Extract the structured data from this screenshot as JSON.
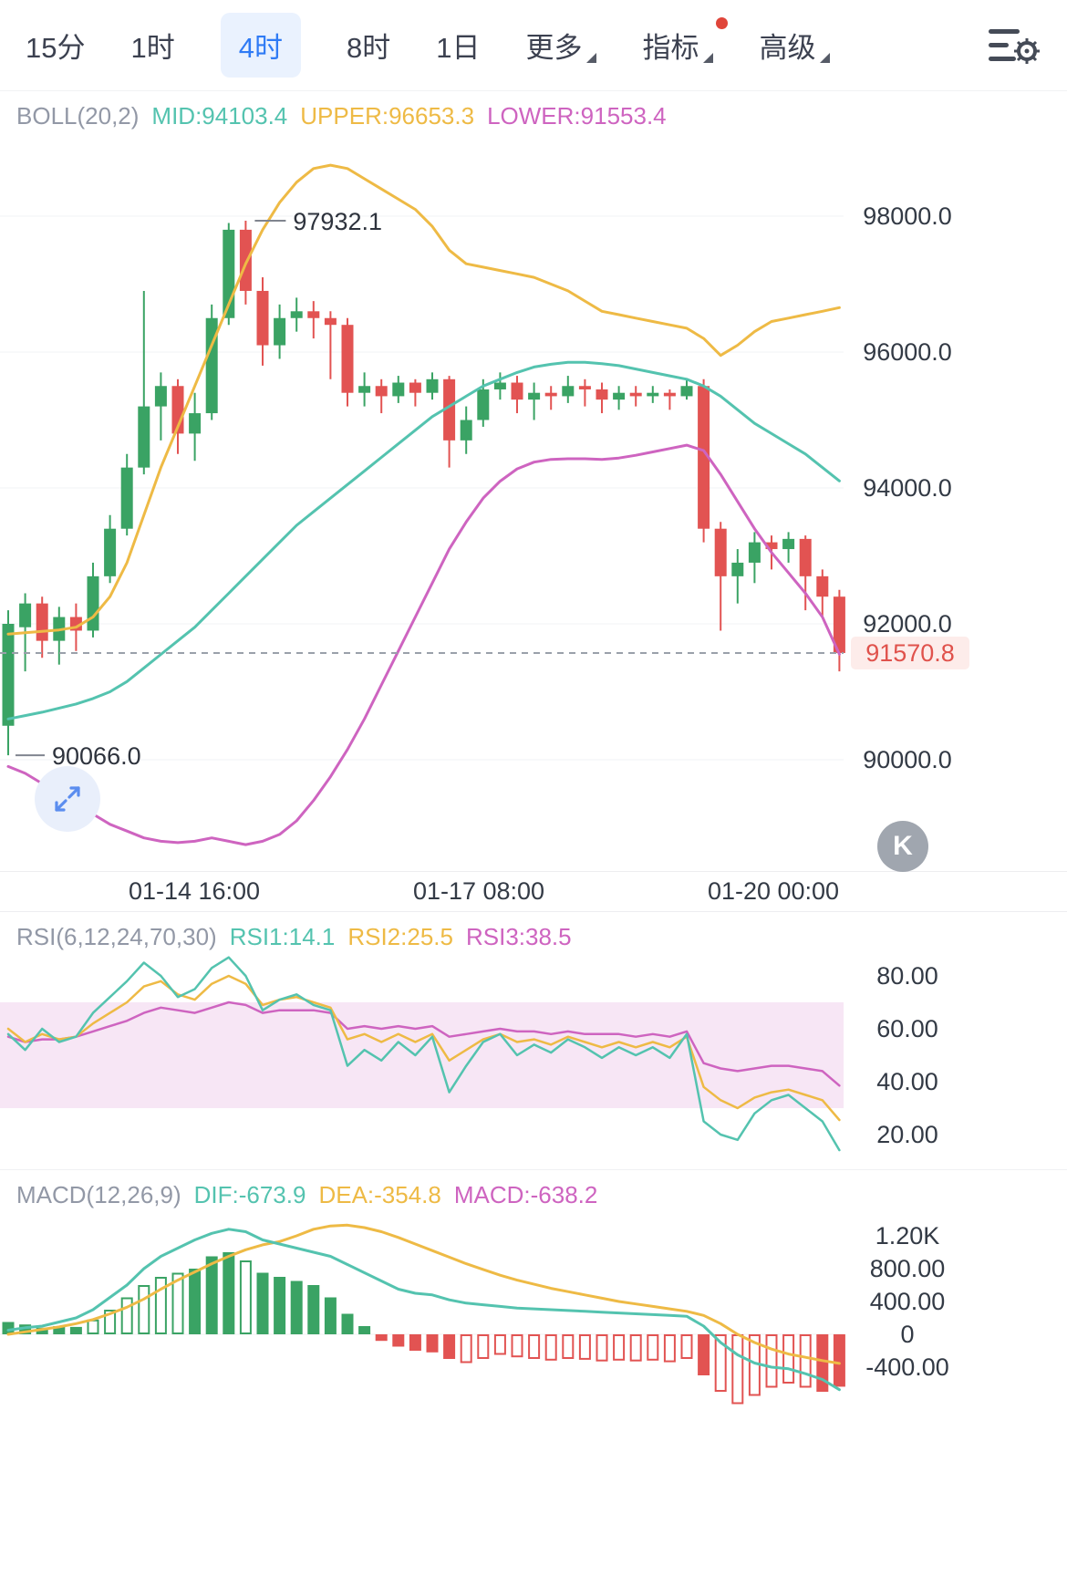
{
  "toolbar": {
    "timeframes": [
      {
        "label": "15分",
        "active": false
      },
      {
        "label": "1时",
        "active": false
      },
      {
        "label": "4时",
        "active": true
      },
      {
        "label": "8时",
        "active": false
      },
      {
        "label": "1日",
        "active": false
      }
    ],
    "menus": [
      {
        "label": "更多",
        "has_badge": false
      },
      {
        "label": "指标",
        "has_badge": true
      },
      {
        "label": "高级",
        "has_badge": false
      }
    ]
  },
  "buttons": {
    "k_label": "K"
  },
  "colors": {
    "up": "#3aa364",
    "down": "#e25352",
    "teal": "#54c3af",
    "orange": "#eeba45",
    "magenta": "#ce64c0",
    "grid": "#f2f3f5",
    "axis_text": "#333a45",
    "dashed": "#9aa0aa",
    "last_bg": "#fdecea",
    "last_text": "#e0524c",
    "band": "#f7e6f5",
    "title_gray": "#9298a6"
  },
  "chart_data": [
    {
      "type": "candlestick",
      "indicator": "BOLL(20,2)",
      "legend": [
        {
          "label": "BOLL(20,2)",
          "color": "#9298a6"
        },
        {
          "label": "MID:94103.4",
          "color": "#54c3af"
        },
        {
          "label": "UPPER:96653.3",
          "color": "#eeba45"
        },
        {
          "label": "LOWER:91553.4",
          "color": "#ce64c0"
        }
      ],
      "y_ticks": [
        {
          "label": "98000.0",
          "value": 98000
        },
        {
          "label": "96000.0",
          "value": 96000
        },
        {
          "label": "94000.0",
          "value": 94000
        },
        {
          "label": "92000.0",
          "value": 92000
        },
        {
          "label": "90000.0",
          "value": 90000
        }
      ],
      "x_ticks": [
        {
          "label": "01-14 16:00",
          "pos": 0.23
        },
        {
          "label": "01-17 08:00",
          "pos": 0.568
        },
        {
          "label": "01-20 00:00",
          "pos": 0.917
        }
      ],
      "candles": [
        [
          90500,
          92200,
          90066,
          92000
        ],
        [
          91950,
          92450,
          91300,
          92300
        ],
        [
          92300,
          92400,
          91500,
          91750
        ],
        [
          91750,
          92250,
          91400,
          92100
        ],
        [
          92100,
          92300,
          91600,
          91900
        ],
        [
          91900,
          92900,
          91800,
          92700
        ],
        [
          92700,
          93600,
          92600,
          93400
        ],
        [
          93400,
          94500,
          93300,
          94300
        ],
        [
          94300,
          96900,
          94200,
          95200
        ],
        [
          95200,
          95700,
          94700,
          95500
        ],
        [
          95500,
          95600,
          94500,
          94800
        ],
        [
          94800,
          95400,
          94400,
          95100
        ],
        [
          95100,
          96700,
          95000,
          96500
        ],
        [
          96500,
          97900,
          96400,
          97800
        ],
        [
          97800,
          97932.1,
          96700,
          96900
        ],
        [
          96900,
          97100,
          95800,
          96100
        ],
        [
          96100,
          96700,
          95900,
          96500
        ],
        [
          96500,
          96800,
          96300,
          96600
        ],
        [
          96600,
          96750,
          96200,
          96500
        ],
        [
          96500,
          96600,
          95600,
          96400
        ],
        [
          96400,
          96500,
          95200,
          95400
        ],
        [
          95400,
          95700,
          95200,
          95500
        ],
        [
          95500,
          95600,
          95100,
          95350
        ],
        [
          95350,
          95650,
          95250,
          95550
        ],
        [
          95550,
          95600,
          95200,
          95400
        ],
        [
          95400,
          95700,
          95300,
          95600
        ],
        [
          95600,
          95650,
          94300,
          94700
        ],
        [
          94700,
          95200,
          94500,
          95000
        ],
        [
          95000,
          95600,
          94900,
          95450
        ],
        [
          95450,
          95700,
          95300,
          95550
        ],
        [
          95550,
          95650,
          95100,
          95300
        ],
        [
          95300,
          95550,
          95000,
          95400
        ],
        [
          95400,
          95500,
          95150,
          95350
        ],
        [
          95350,
          95650,
          95250,
          95500
        ],
        [
          95500,
          95600,
          95200,
          95450
        ],
        [
          95450,
          95550,
          95100,
          95300
        ],
        [
          95300,
          95500,
          95150,
          95400
        ],
        [
          95400,
          95500,
          95200,
          95350
        ],
        [
          95350,
          95500,
          95250,
          95400
        ],
        [
          95400,
          95450,
          95150,
          95350
        ],
        [
          95350,
          95600,
          95300,
          95500
        ],
        [
          95500,
          95600,
          93200,
          93400
        ],
        [
          93400,
          93500,
          91900,
          92700
        ],
        [
          92700,
          93100,
          92300,
          92900
        ],
        [
          92900,
          93350,
          92600,
          93200
        ],
        [
          93200,
          93300,
          92800,
          93100
        ],
        [
          93100,
          93350,
          92900,
          93250
        ],
        [
          93250,
          93300,
          92200,
          92700
        ],
        [
          92700,
          92800,
          92100,
          92400
        ],
        [
          92400,
          92500,
          91300,
          91570.8
        ]
      ],
      "overlays": {
        "upper": [
          91850,
          91870,
          91890,
          91910,
          91950,
          92100,
          92400,
          92900,
          93600,
          94300,
          94900,
          95500,
          96100,
          96700,
          97300,
          97800,
          98200,
          98500,
          98700,
          98750,
          98700,
          98550,
          98400,
          98250,
          98100,
          97850,
          97500,
          97300,
          97250,
          97200,
          97150,
          97100,
          97000,
          96900,
          96750,
          96600,
          96550,
          96500,
          96450,
          96400,
          96350,
          96200,
          95950,
          96100,
          96300,
          96450,
          96500,
          96550,
          96600,
          96653.3
        ],
        "mid": [
          90600,
          90650,
          90700,
          90760,
          90820,
          90900,
          91000,
          91150,
          91350,
          91550,
          91750,
          91950,
          92200,
          92450,
          92700,
          92950,
          93200,
          93450,
          93650,
          93850,
          94050,
          94250,
          94450,
          94650,
          94850,
          95050,
          95200,
          95350,
          95500,
          95600,
          95700,
          95780,
          95820,
          95850,
          95850,
          95830,
          95800,
          95750,
          95700,
          95650,
          95600,
          95500,
          95350,
          95150,
          94950,
          94800,
          94650,
          94500,
          94300,
          94103.4
        ],
        "lower": [
          89900,
          89800,
          89650,
          89500,
          89350,
          89200,
          89050,
          88950,
          88850,
          88800,
          88780,
          88800,
          88850,
          88800,
          88750,
          88800,
          88900,
          89100,
          89400,
          89750,
          90150,
          90600,
          91100,
          91600,
          92100,
          92600,
          93100,
          93500,
          93850,
          94100,
          94280,
          94380,
          94420,
          94430,
          94430,
          94420,
          94440,
          94480,
          94530,
          94580,
          94630,
          94550,
          94200,
          93800,
          93400,
          93050,
          92750,
          92450,
          92100,
          91553.4
        ]
      },
      "annotations": {
        "high": {
          "label": "97932.1",
          "price": 97932.1,
          "index": 14
        },
        "low": {
          "label": "90066.0",
          "price": 90066.0,
          "index": 0
        }
      },
      "last_price": {
        "label": "91570.8",
        "value": 91570.8
      }
    },
    {
      "type": "line",
      "indicator": "RSI(6,12,24,70,30)",
      "legend": [
        {
          "label": "RSI(6,12,24,70,30)",
          "color": "#9298a6"
        },
        {
          "label": "RSI1:14.1",
          "color": "#54c3af"
        },
        {
          "label": "RSI2:25.5",
          "color": "#eeba45"
        },
        {
          "label": "RSI3:38.5",
          "color": "#ce64c0"
        }
      ],
      "y_ticks": [
        {
          "label": "80.00",
          "value": 80
        },
        {
          "label": "60.00",
          "value": 60
        },
        {
          "label": "40.00",
          "value": 40
        },
        {
          "label": "20.00",
          "value": 20
        }
      ],
      "band": {
        "from": 30,
        "to": 70
      },
      "series": [
        {
          "name": "RSI1",
          "color": "#54c3af",
          "values": [
            58,
            52,
            60,
            55,
            57,
            66,
            72,
            78,
            85,
            80,
            72,
            75,
            83,
            87,
            80,
            67,
            71,
            73,
            69,
            67,
            46,
            52,
            48,
            55,
            50,
            57,
            36,
            46,
            55,
            58,
            50,
            54,
            51,
            56,
            53,
            49,
            53,
            50,
            53,
            49,
            58,
            25,
            20,
            18,
            28,
            33,
            35,
            30,
            25,
            14.1
          ]
        },
        {
          "name": "RSI2",
          "color": "#eeba45",
          "values": [
            60,
            55,
            58,
            56,
            57,
            62,
            66,
            70,
            76,
            78,
            73,
            71,
            77,
            80,
            77,
            69,
            71,
            72,
            70,
            68,
            56,
            58,
            55,
            58,
            55,
            58,
            48,
            52,
            56,
            58,
            55,
            56,
            54,
            57,
            55,
            53,
            55,
            53,
            55,
            53,
            57,
            38,
            33,
            30,
            34,
            36,
            37,
            35,
            33,
            25.5
          ]
        },
        {
          "name": "RSI3",
          "color": "#ce64c0",
          "values": [
            57,
            55,
            56,
            56,
            57,
            59,
            61,
            63,
            66,
            68,
            67,
            66,
            68,
            70,
            69,
            66,
            67,
            67,
            67,
            66,
            60,
            61,
            60,
            61,
            60,
            61,
            57,
            58,
            59,
            60,
            59,
            59,
            58,
            59,
            58,
            58,
            58,
            57,
            58,
            57,
            59,
            47,
            45,
            44,
            45,
            46,
            46,
            45,
            44,
            38.5
          ]
        }
      ]
    },
    {
      "type": "macd",
      "indicator": "MACD(12,26,9)",
      "legend": [
        {
          "label": "MACD(12,26,9)",
          "color": "#9298a6"
        },
        {
          "label": "DIF:-673.9",
          "color": "#54c3af"
        },
        {
          "label": "DEA:-354.8",
          "color": "#eeba45"
        },
        {
          "label": "MACD:-638.2",
          "color": "#ce64c0"
        }
      ],
      "y_ticks": [
        {
          "label": "1.20K",
          "value": 1200
        },
        {
          "label": "800.00",
          "value": 800
        },
        {
          "label": "400.00",
          "value": 400
        },
        {
          "label": "0",
          "value": 0
        },
        {
          "label": "-400.00",
          "value": -400
        }
      ],
      "histogram": [
        150,
        120,
        80,
        100,
        90,
        180,
        300,
        450,
        600,
        700,
        750,
        800,
        950,
        1000,
        900,
        750,
        700,
        650,
        600,
        450,
        250,
        100,
        -80,
        -150,
        -200,
        -220,
        -300,
        -350,
        -300,
        -250,
        -280,
        -300,
        -320,
        -300,
        -310,
        -330,
        -320,
        -330,
        -320,
        -340,
        -300,
        -500,
        -700,
        -850,
        -750,
        -650,
        -600,
        -650,
        -700,
        -638.2
      ],
      "hollow": [
        false,
        false,
        false,
        false,
        false,
        true,
        true,
        true,
        true,
        true,
        true,
        false,
        false,
        false,
        true,
        false,
        false,
        false,
        false,
        false,
        false,
        false,
        false,
        false,
        false,
        false,
        false,
        true,
        true,
        true,
        true,
        true,
        true,
        true,
        true,
        true,
        true,
        true,
        true,
        true,
        true,
        false,
        true,
        true,
        true,
        true,
        true,
        true,
        false,
        false
      ],
      "dif": [
        50,
        80,
        100,
        150,
        200,
        300,
        450,
        600,
        800,
        950,
        1050,
        1150,
        1230,
        1280,
        1250,
        1150,
        1100,
        1050,
        1000,
        950,
        850,
        750,
        650,
        550,
        500,
        480,
        420,
        380,
        360,
        340,
        320,
        310,
        300,
        290,
        280,
        270,
        260,
        250,
        240,
        230,
        220,
        100,
        -100,
        -250,
        -350,
        -400,
        -420,
        -480,
        -550,
        -673.9
      ],
      "dea": [
        0,
        30,
        60,
        90,
        130,
        180,
        250,
        330,
        430,
        550,
        660,
        760,
        860,
        950,
        1030,
        1090,
        1130,
        1200,
        1280,
        1320,
        1330,
        1300,
        1250,
        1180,
        1100,
        1020,
        940,
        860,
        790,
        720,
        660,
        610,
        560,
        520,
        480,
        440,
        400,
        370,
        340,
        310,
        280,
        230,
        130,
        0,
        -100,
        -180,
        -240,
        -280,
        -320,
        -354.8
      ]
    }
  ]
}
